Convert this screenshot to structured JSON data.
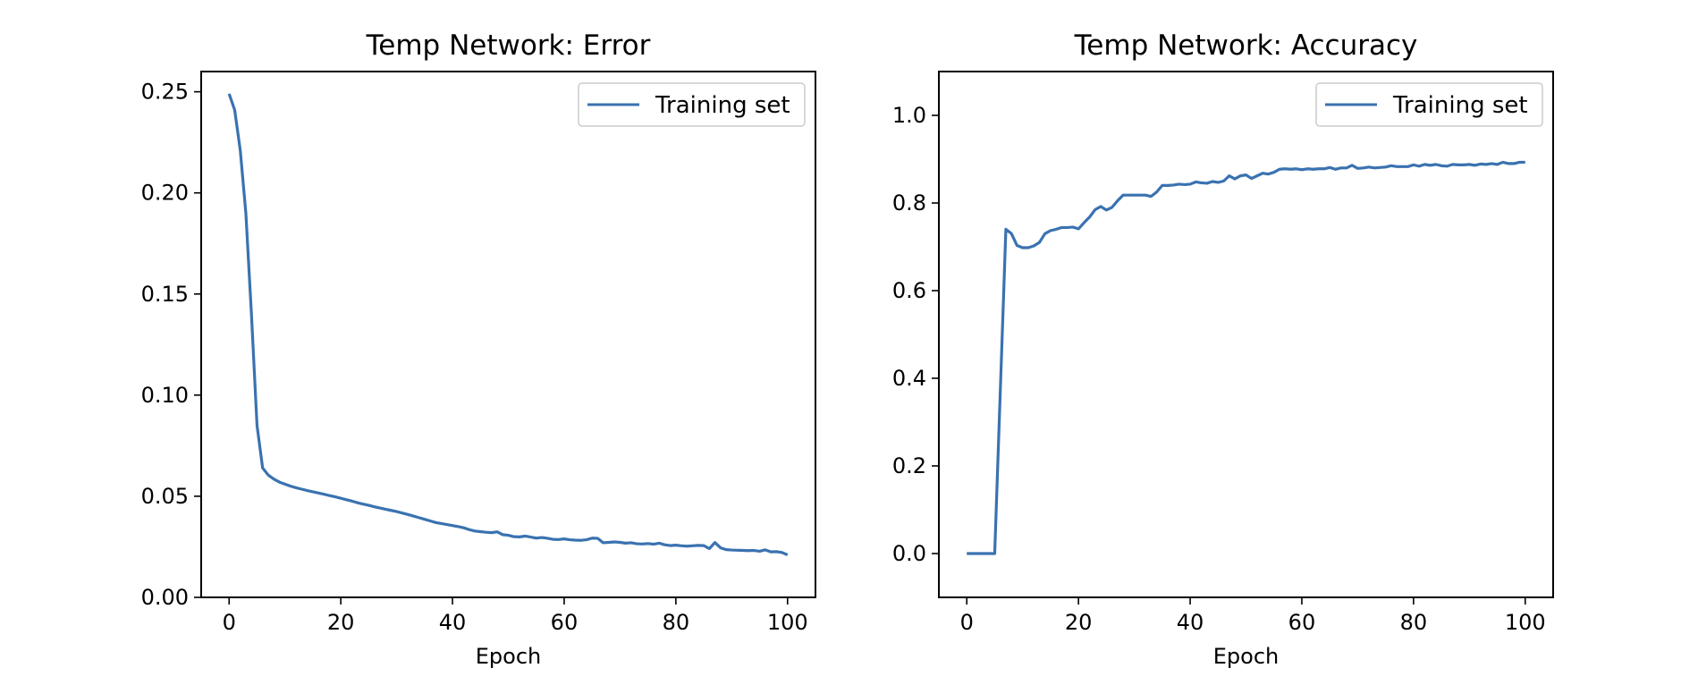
{
  "chart_data": [
    {
      "type": "line",
      "title": "Temp Network: Error",
      "xlabel": "Epoch",
      "ylabel": "",
      "xlim": [
        -5,
        105
      ],
      "ylim": [
        0,
        0.26
      ],
      "xticks": [
        0,
        20,
        40,
        60,
        80,
        100
      ],
      "xtick_labels": [
        "0",
        "20",
        "40",
        "60",
        "80",
        "100"
      ],
      "yticks": [
        0,
        0.05,
        0.1,
        0.15,
        0.2,
        0.25
      ],
      "ytick_labels": [
        "0.00",
        "0.05",
        "0.10",
        "0.15",
        "0.20",
        "0.25"
      ],
      "grid": false,
      "legend": "upper right",
      "series": [
        {
          "name": "Training set",
          "color": "#3a72b0",
          "x": [
            0,
            1,
            2,
            3,
            4,
            5,
            6,
            7,
            8,
            9,
            10,
            11,
            12,
            13,
            14,
            15,
            16,
            17,
            18,
            19,
            20,
            21,
            22,
            23,
            24,
            25,
            26,
            27,
            28,
            29,
            30,
            31,
            32,
            33,
            34,
            35,
            36,
            37,
            38,
            39,
            40,
            41,
            42,
            43,
            44,
            45,
            46,
            47,
            48,
            49,
            50,
            51,
            52,
            53,
            54,
            55,
            56,
            57,
            58,
            59,
            60,
            61,
            62,
            63,
            64,
            65,
            66,
            67,
            68,
            69,
            70,
            71,
            72,
            73,
            74,
            75,
            76,
            77,
            78,
            79,
            80,
            81,
            82,
            83,
            84,
            85,
            86,
            87,
            88,
            89,
            90,
            91,
            92,
            93,
            94,
            95,
            96,
            97,
            98,
            99,
            100
          ],
          "y": [
            0.249,
            0.241,
            0.221,
            0.19,
            0.14,
            0.085,
            0.064,
            0.0605,
            0.0585,
            0.057,
            0.056,
            0.055,
            0.0542,
            0.0535,
            0.0528,
            0.0522,
            0.0516,
            0.051,
            0.0503,
            0.0497,
            0.049,
            0.0483,
            0.0476,
            0.0468,
            0.0461,
            0.0455,
            0.0448,
            0.0442,
            0.0436,
            0.043,
            0.0424,
            0.0417,
            0.041,
            0.0402,
            0.0394,
            0.0386,
            0.0378,
            0.037,
            0.0365,
            0.036,
            0.0355,
            0.035,
            0.0344,
            0.0335,
            0.0328,
            0.0325,
            0.0322,
            0.032,
            0.0324,
            0.031,
            0.0307,
            0.03,
            0.0299,
            0.0303,
            0.0298,
            0.0293,
            0.0296,
            0.0292,
            0.0287,
            0.0286,
            0.0289,
            0.0285,
            0.0283,
            0.0282,
            0.0285,
            0.0293,
            0.0292,
            0.027,
            0.0272,
            0.0274,
            0.0272,
            0.0268,
            0.027,
            0.0265,
            0.0264,
            0.0266,
            0.0263,
            0.0268,
            0.026,
            0.0256,
            0.0258,
            0.0255,
            0.0253,
            0.0255,
            0.0257,
            0.0256,
            0.0241,
            0.0271,
            0.0245,
            0.0236,
            0.0234,
            0.0233,
            0.0232,
            0.0231,
            0.0232,
            0.0228,
            0.0235,
            0.0225,
            0.0226,
            0.0222,
            0.021
          ]
        }
      ]
    },
    {
      "type": "line",
      "title": "Temp Network: Accuracy",
      "xlabel": "Epoch",
      "ylabel": "",
      "xlim": [
        -5,
        105
      ],
      "ylim": [
        -0.1,
        1.1
      ],
      "xticks": [
        0,
        20,
        40,
        60,
        80,
        100
      ],
      "xtick_labels": [
        "0",
        "20",
        "40",
        "60",
        "80",
        "100"
      ],
      "yticks": [
        0,
        0.2,
        0.4,
        0.6,
        0.8,
        1.0
      ],
      "ytick_labels": [
        "0.0",
        "0.2",
        "0.4",
        "0.6",
        "0.8",
        "1.0"
      ],
      "grid": false,
      "legend": "upper right",
      "series": [
        {
          "name": "Training set",
          "color": "#3a72b0",
          "x": [
            0,
            1,
            2,
            3,
            4,
            5,
            6,
            7,
            8,
            9,
            10,
            11,
            12,
            13,
            14,
            15,
            16,
            17,
            18,
            19,
            20,
            21,
            22,
            23,
            24,
            25,
            26,
            27,
            28,
            29,
            30,
            31,
            32,
            33,
            34,
            35,
            36,
            37,
            38,
            39,
            40,
            41,
            42,
            43,
            44,
            45,
            46,
            47,
            48,
            49,
            50,
            51,
            52,
            53,
            54,
            55,
            56,
            57,
            58,
            59,
            60,
            61,
            62,
            63,
            64,
            65,
            66,
            67,
            68,
            69,
            70,
            71,
            72,
            73,
            74,
            75,
            76,
            77,
            78,
            79,
            80,
            81,
            82,
            83,
            84,
            85,
            86,
            87,
            88,
            89,
            90,
            91,
            92,
            93,
            94,
            95,
            96,
            97,
            98,
            99,
            100
          ],
          "y": [
            0.0,
            0.0,
            0.0,
            0.0,
            0.0,
            0.0,
            0.37,
            0.74,
            0.73,
            0.703,
            0.698,
            0.698,
            0.702,
            0.71,
            0.73,
            0.737,
            0.74,
            0.744,
            0.744,
            0.745,
            0.741,
            0.755,
            0.768,
            0.785,
            0.792,
            0.784,
            0.79,
            0.805,
            0.818,
            0.818,
            0.818,
            0.818,
            0.818,
            0.815,
            0.825,
            0.84,
            0.84,
            0.841,
            0.843,
            0.842,
            0.843,
            0.848,
            0.846,
            0.845,
            0.849,
            0.847,
            0.85,
            0.862,
            0.855,
            0.862,
            0.864,
            0.856,
            0.862,
            0.868,
            0.866,
            0.87,
            0.877,
            0.878,
            0.877,
            0.878,
            0.876,
            0.878,
            0.877,
            0.878,
            0.878,
            0.881,
            0.877,
            0.88,
            0.88,
            0.886,
            0.879,
            0.88,
            0.882,
            0.88,
            0.881,
            0.882,
            0.885,
            0.883,
            0.883,
            0.883,
            0.887,
            0.884,
            0.888,
            0.886,
            0.888,
            0.885,
            0.884,
            0.888,
            0.887,
            0.887,
            0.888,
            0.886,
            0.889,
            0.888,
            0.89,
            0.888,
            0.893,
            0.89,
            0.89,
            0.893,
            0.893
          ]
        }
      ]
    }
  ]
}
